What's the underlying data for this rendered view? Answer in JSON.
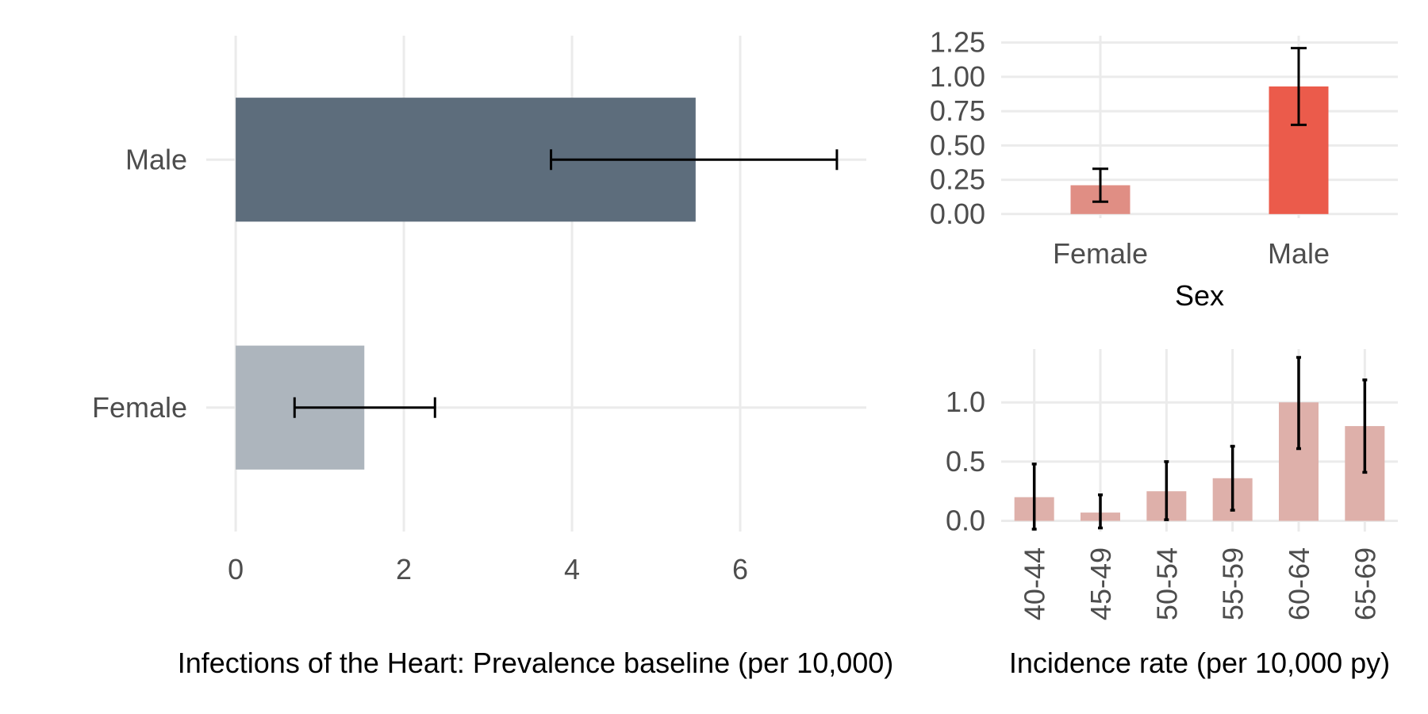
{
  "chart_data": [
    {
      "id": "prevalence",
      "type": "bar",
      "orientation": "horizontal",
      "categories": [
        "Female",
        "Male"
      ],
      "values": [
        1.53,
        5.47
      ],
      "ci_low": [
        0.7,
        3.75
      ],
      "ci_high": [
        2.37,
        7.15
      ],
      "colors": [
        "#adb5bd",
        "#5d6d7c"
      ],
      "xlim": [
        -0.35,
        7.5
      ],
      "xticks": [
        0,
        2,
        4,
        6
      ],
      "xtick_labels": [
        "0",
        "2",
        "4",
        "6"
      ],
      "xlabel": "Infections of the Heart: Prevalence baseline (per 10,000)",
      "ylabel": "",
      "grid": true
    },
    {
      "id": "incidence-sex",
      "type": "bar",
      "categories": [
        "Female",
        "Male"
      ],
      "values": [
        0.21,
        0.93
      ],
      "ci_low": [
        0.09,
        0.65
      ],
      "ci_high": [
        0.33,
        1.21
      ],
      "colors": [
        "#e08e84",
        "#eb5b4b"
      ],
      "ylim": [
        -0.03,
        1.3
      ],
      "yticks": [
        0,
        0.25,
        0.5,
        0.75,
        1.0,
        1.25
      ],
      "ytick_labels": [
        "0.00",
        "0.25",
        "0.50",
        "0.75",
        "1.00",
        "1.25"
      ],
      "xlabel": "Sex",
      "ylabel": "",
      "grid": true
    },
    {
      "id": "incidence-age",
      "type": "bar",
      "categories": [
        "40-44",
        "45-49",
        "50-54",
        "55-59",
        "60-64",
        "65-69"
      ],
      "values": [
        0.2,
        0.07,
        0.25,
        0.36,
        1.0,
        0.8
      ],
      "ci_low": [
        -0.07,
        -0.06,
        0.01,
        0.09,
        0.61,
        0.41
      ],
      "ci_high": [
        0.48,
        0.22,
        0.5,
        0.63,
        1.38,
        1.19
      ],
      "color": "#deb0aa",
      "ylim": [
        -0.09,
        1.45
      ],
      "yticks": [
        0,
        0.5,
        1.0
      ],
      "ytick_labels": [
        "0.0",
        "0.5",
        "1.0"
      ],
      "xlabel": "Incidence rate (per 10,000 py)",
      "ylabel": "",
      "grid": true
    }
  ]
}
